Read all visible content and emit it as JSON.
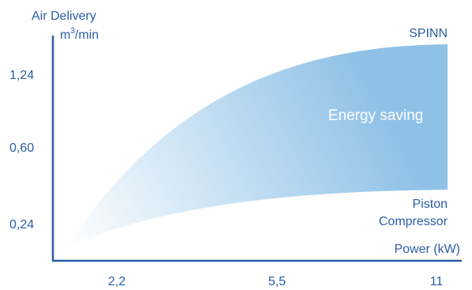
{
  "chart_data": {
    "type": "area",
    "title": "",
    "ylabel_line1": "Air Delivery",
    "ylabel_unit_pre": "m",
    "ylabel_unit_sup": "3",
    "ylabel_unit_post": "/min",
    "xlabel": "Power (kW)",
    "y_ticks": [
      "1,24",
      "0,60",
      "0,24"
    ],
    "x_ticks": [
      "2,2",
      "5,5",
      "11"
    ],
    "band_label": "Energy saving",
    "series": [
      {
        "name": "SPINN",
        "label_lines": [
          "SPINN"
        ]
      },
      {
        "name": "Piston Compressor",
        "label_lines": [
          "Piston",
          "Compressor"
        ]
      }
    ],
    "colors": {
      "text": "#2a5ea6",
      "axis": "#2a5ea6",
      "band_dark": "#8fc1e7",
      "band_light": "#ffffff",
      "band_text": "#ffffff"
    },
    "grid": false,
    "legend": "none"
  }
}
